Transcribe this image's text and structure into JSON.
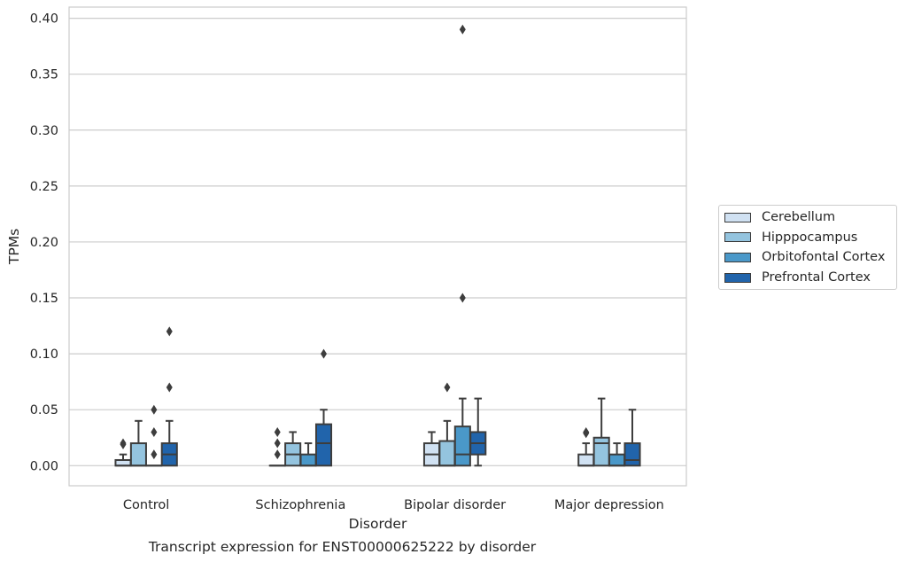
{
  "chart_data": {
    "type": "box",
    "title": "Transcript expression for ENST00000625222 by disorder",
    "xlabel": "Disorder",
    "ylabel": "TPMs",
    "ylim": [
      -0.018,
      0.41
    ],
    "yticks": [
      "0.00",
      "0.05",
      "0.10",
      "0.15",
      "0.20",
      "0.25",
      "0.30",
      "0.35",
      "0.40"
    ],
    "ytick_values": [
      0,
      0.05,
      0.1,
      0.15,
      0.2,
      0.25,
      0.3,
      0.35,
      0.4
    ],
    "grid": "horizontal",
    "legend_position": "right",
    "categories": [
      "Control",
      "Schizophrenia",
      "Bipolar disorder",
      "Major depression"
    ],
    "series": [
      {
        "name": "Cerebellum",
        "color": "#d0e1f2",
        "boxes": [
          {
            "whislo": 0,
            "q1": 0,
            "med": 0,
            "q3": 0.005,
            "whishi": 0.01,
            "fliers": [
              0.02,
              0.019
            ]
          },
          {
            "whislo": 0,
            "q1": 0,
            "med": 0,
            "q3": 0,
            "whishi": 0,
            "fliers": [
              0.01,
              0.02,
              0.03
            ]
          },
          {
            "whislo": 0,
            "q1": 0,
            "med": 0.01,
            "q3": 0.02,
            "whishi": 0.03,
            "fliers": []
          },
          {
            "whislo": 0,
            "q1": 0,
            "med": 0,
            "q3": 0.01,
            "whishi": 0.02,
            "fliers": [
              0.03,
              0.029
            ]
          }
        ]
      },
      {
        "name": "Hipppocampus",
        "color": "#94c4df",
        "boxes": [
          {
            "whislo": 0,
            "q1": 0,
            "med": 0,
            "q3": 0.02,
            "whishi": 0.04,
            "fliers": []
          },
          {
            "whislo": 0,
            "q1": 0,
            "med": 0.01,
            "q3": 0.02,
            "whishi": 0.03,
            "fliers": []
          },
          {
            "whislo": 0,
            "q1": 0,
            "med": 0,
            "q3": 0.022,
            "whishi": 0.04,
            "fliers": [
              0.07
            ]
          },
          {
            "whislo": 0,
            "q1": 0,
            "med": 0.02,
            "q3": 0.025,
            "whishi": 0.06,
            "fliers": []
          }
        ]
      },
      {
        "name": "Orbitofontal Cortex",
        "color": "#4a98c9",
        "boxes": [
          {
            "whislo": 0,
            "q1": 0,
            "med": 0,
            "q3": 0,
            "whishi": 0,
            "fliers": [
              0.01,
              0.03,
              0.05
            ]
          },
          {
            "whislo": 0,
            "q1": 0,
            "med": 0,
            "q3": 0.01,
            "whishi": 0.02,
            "fliers": []
          },
          {
            "whislo": 0,
            "q1": 0,
            "med": 0.01,
            "q3": 0.035,
            "whishi": 0.06,
            "fliers": [
              0.15,
              0.39
            ]
          },
          {
            "whislo": 0,
            "q1": 0,
            "med": 0,
            "q3": 0.01,
            "whishi": 0.02,
            "fliers": []
          }
        ]
      },
      {
        "name": "Prefrontal Cortex",
        "color": "#2164ab",
        "boxes": [
          {
            "whislo": 0,
            "q1": 0,
            "med": 0.01,
            "q3": 0.02,
            "whishi": 0.04,
            "fliers": [
              0.07,
              0.12
            ]
          },
          {
            "whislo": 0,
            "q1": 0,
            "med": 0.02,
            "q3": 0.037,
            "whishi": 0.05,
            "fliers": [
              0.1
            ]
          },
          {
            "whislo": 0,
            "q1": 0.01,
            "med": 0.02,
            "q3": 0.03,
            "whishi": 0.06,
            "fliers": []
          },
          {
            "whislo": 0,
            "q1": 0,
            "med": 0.005,
            "q3": 0.02,
            "whishi": 0.05,
            "fliers": []
          }
        ]
      }
    ]
  }
}
